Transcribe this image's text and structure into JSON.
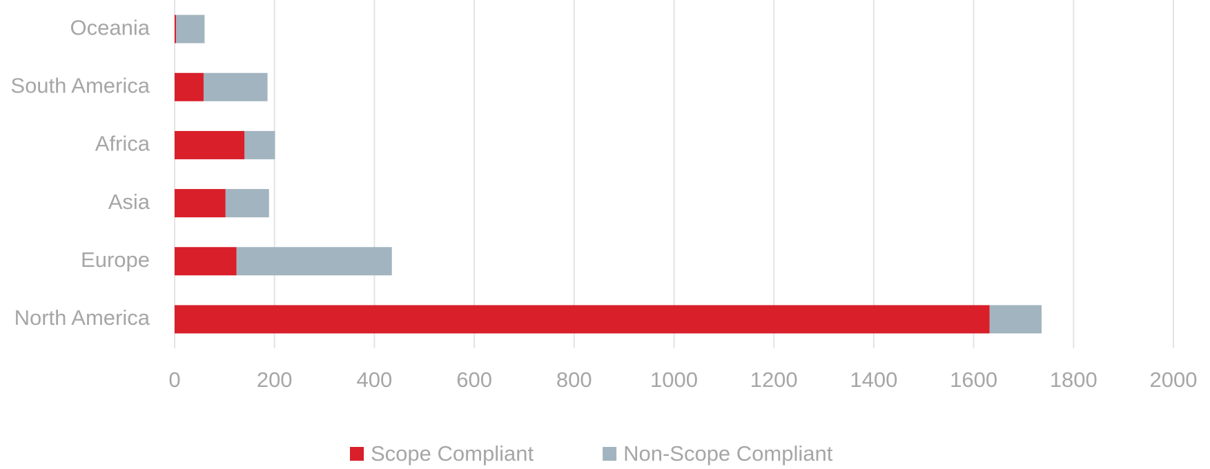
{
  "chart_data": {
    "type": "stacked-barh",
    "categories": [
      "Oceania",
      "South America",
      "Africa",
      "Asia",
      "Europe",
      "North America"
    ],
    "series": [
      {
        "name": "Scope Compliant",
        "color": "#d81f2a",
        "values": [
          3,
          58,
          140,
          102,
          124,
          1632
        ]
      },
      {
        "name": "Non-Scope Compliant",
        "color": "#a2b4bf",
        "values": [
          57,
          128,
          61,
          87,
          311,
          104
        ]
      }
    ],
    "xlim": [
      0,
      2000
    ],
    "xticks": [
      0,
      200,
      400,
      600,
      800,
      1000,
      1200,
      1400,
      1600,
      1800,
      2000
    ],
    "grid": true,
    "legend": "bottom"
  }
}
